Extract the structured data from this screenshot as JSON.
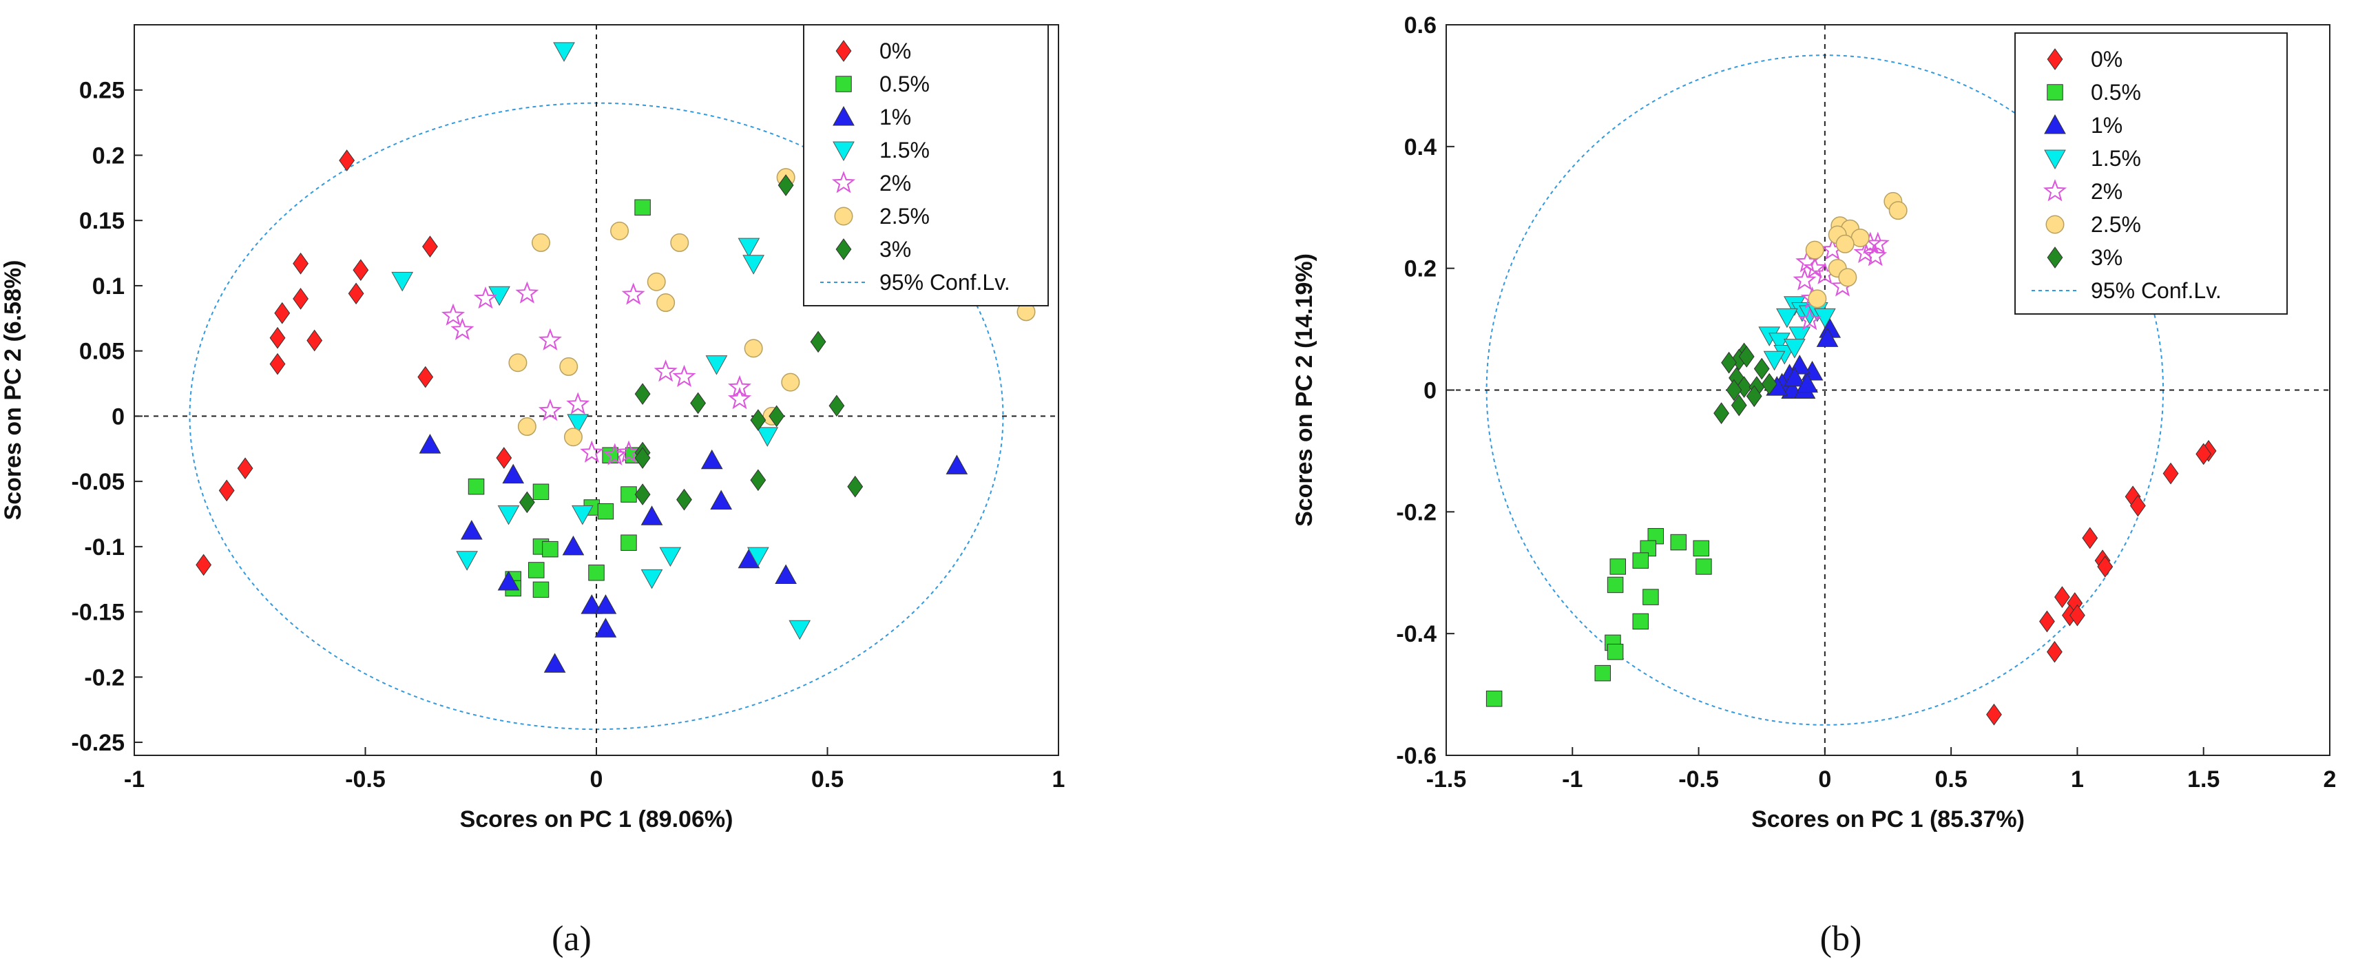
{
  "chart_data": [
    {
      "type": "scatter",
      "panel_label": "(a)",
      "xlabel": "Scores on PC 1 (89.06%)",
      "ylabel": "Scores on PC 2 (6.58%)",
      "xlim": [
        -1,
        1
      ],
      "ylim": [
        -0.26,
        0.3
      ],
      "xticks": [
        -1,
        -0.5,
        0,
        0.5,
        1
      ],
      "xtick_labels": [
        "-1",
        "-0.5",
        "0",
        "0.5",
        "1"
      ],
      "yticks": [
        -0.25,
        -0.2,
        -0.15,
        -0.1,
        -0.05,
        0,
        0.05,
        0.1,
        0.15,
        0.2,
        0.25
      ],
      "ytick_labels": [
        "-0.25",
        "-0.2",
        "-0.15",
        "-0.1",
        "-0.05",
        "0",
        "0.05",
        "0.1",
        "0.15",
        "0.2",
        "0.25"
      ],
      "legend_position": "top-right",
      "confidence_ellipse": {
        "label": "95% Conf.Lv.",
        "center": [
          0,
          0.0
        ],
        "rx": 0.88,
        "ry": 0.24
      },
      "series": [
        {
          "name": "0%",
          "marker": "diamond",
          "color": "#ff2020",
          "points": [
            [
              -0.54,
              0.196
            ],
            [
              -0.64,
              0.117
            ],
            [
              -0.51,
              0.112
            ],
            [
              -0.36,
              0.13
            ],
            [
              -0.68,
              0.079
            ],
            [
              -0.64,
              0.09
            ],
            [
              -0.52,
              0.094
            ],
            [
              -0.69,
              0.06
            ],
            [
              -0.61,
              0.058
            ],
            [
              -0.69,
              0.04
            ],
            [
              -0.37,
              0.03
            ],
            [
              -0.2,
              -0.032
            ],
            [
              -0.76,
              -0.04
            ],
            [
              -0.8,
              -0.057
            ],
            [
              -0.85,
              -0.114
            ]
          ]
        },
        {
          "name": "0.5%",
          "marker": "square",
          "color": "#33dd33",
          "points": [
            [
              0.1,
              0.16
            ],
            [
              0.03,
              -0.03
            ],
            [
              0.08,
              -0.03
            ],
            [
              -0.26,
              -0.054
            ],
            [
              -0.12,
              -0.058
            ],
            [
              0.07,
              -0.06
            ],
            [
              -0.01,
              -0.07
            ],
            [
              0.02,
              -0.073
            ],
            [
              0.07,
              -0.097
            ],
            [
              -0.12,
              -0.1
            ],
            [
              -0.1,
              -0.102
            ],
            [
              0.0,
              -0.12
            ],
            [
              -0.13,
              -0.118
            ],
            [
              -0.18,
              -0.125
            ],
            [
              -0.12,
              -0.133
            ],
            [
              -0.18,
              -0.132
            ]
          ]
        },
        {
          "name": "1%",
          "marker": "triangle-up",
          "color": "#2222ee",
          "points": [
            [
              -0.36,
              -0.022
            ],
            [
              -0.27,
              -0.088
            ],
            [
              -0.18,
              -0.045
            ],
            [
              -0.05,
              -0.1
            ],
            [
              -0.19,
              -0.127
            ],
            [
              0.12,
              -0.077
            ],
            [
              0.25,
              -0.034
            ],
            [
              0.27,
              -0.065
            ],
            [
              0.33,
              -0.11
            ],
            [
              0.41,
              -0.122
            ],
            [
              0.78,
              -0.038
            ],
            [
              -0.01,
              -0.145
            ],
            [
              0.02,
              -0.145
            ],
            [
              0.02,
              -0.163
            ],
            [
              -0.09,
              -0.19
            ]
          ]
        },
        {
          "name": "1.5%",
          "marker": "triangle-down",
          "color": "#00eeee",
          "points": [
            [
              -0.07,
              0.28
            ],
            [
              -0.42,
              0.104
            ],
            [
              -0.21,
              0.093
            ],
            [
              0.33,
              0.13
            ],
            [
              0.34,
              0.117
            ],
            [
              0.26,
              0.04
            ],
            [
              0.37,
              -0.015
            ],
            [
              -0.04,
              -0.005
            ],
            [
              -0.19,
              -0.075
            ],
            [
              -0.03,
              -0.075
            ],
            [
              -0.28,
              -0.11
            ],
            [
              0.16,
              -0.107
            ],
            [
              0.35,
              -0.107
            ],
            [
              0.12,
              -0.124
            ],
            [
              0.44,
              -0.163
            ]
          ]
        },
        {
          "name": "2%",
          "marker": "star",
          "color": "#dd55dd",
          "points": [
            [
              -0.31,
              0.077
            ],
            [
              -0.29,
              0.066
            ],
            [
              -0.24,
              0.09
            ],
            [
              -0.15,
              0.094
            ],
            [
              -0.1,
              0.058
            ],
            [
              0.08,
              0.093
            ],
            [
              -0.1,
              0.004
            ],
            [
              -0.04,
              0.009
            ],
            [
              0.15,
              0.034
            ],
            [
              0.19,
              0.03
            ],
            [
              0.31,
              0.022
            ],
            [
              0.31,
              0.013
            ],
            [
              -0.01,
              -0.028
            ],
            [
              0.04,
              -0.03
            ],
            [
              0.07,
              -0.028
            ]
          ]
        },
        {
          "name": "2.5%",
          "marker": "circle",
          "color": "#ffdd88",
          "points": [
            [
              -0.12,
              0.133
            ],
            [
              0.05,
              0.142
            ],
            [
              0.18,
              0.133
            ],
            [
              0.41,
              0.183
            ],
            [
              0.13,
              0.103
            ],
            [
              0.15,
              0.087
            ],
            [
              0.93,
              0.08
            ],
            [
              0.34,
              0.052
            ],
            [
              -0.17,
              0.041
            ],
            [
              -0.06,
              0.038
            ],
            [
              0.42,
              0.026
            ],
            [
              0.38,
              0.0
            ],
            [
              -0.15,
              -0.008
            ],
            [
              -0.05,
              -0.016
            ]
          ]
        },
        {
          "name": "3%",
          "marker": "diamond",
          "color": "#228822",
          "points": [
            [
              0.41,
              0.177
            ],
            [
              0.48,
              0.057
            ],
            [
              0.1,
              0.017
            ],
            [
              0.22,
              0.01
            ],
            [
              0.52,
              0.008
            ],
            [
              0.39,
              0.0
            ],
            [
              0.35,
              -0.003
            ],
            [
              0.1,
              -0.028
            ],
            [
              0.1,
              -0.032
            ],
            [
              0.35,
              -0.049
            ],
            [
              0.56,
              -0.054
            ],
            [
              -0.15,
              -0.066
            ],
            [
              0.1,
              -0.06
            ],
            [
              0.19,
              -0.064
            ]
          ]
        }
      ]
    },
    {
      "type": "scatter",
      "panel_label": "(b)",
      "xlabel": "Scores on PC 1 (85.37%)",
      "ylabel": "Scores on PC 2 (14.19%)",
      "xlim": [
        -1.5,
        2
      ],
      "ylim": [
        -0.6,
        0.6
      ],
      "xticks": [
        -1.5,
        -1,
        -0.5,
        0,
        0.5,
        1,
        1.5,
        2
      ],
      "xtick_labels": [
        "-1.5",
        "-1",
        "-0.5",
        "0",
        "0.5",
        "1",
        "1.5",
        "2"
      ],
      "yticks": [
        -0.6,
        -0.4,
        -0.2,
        0,
        0.2,
        0.4,
        0.6
      ],
      "ytick_labels": [
        "-0.6",
        "-0.4",
        "-0.2",
        "0",
        "0.2",
        "0.4",
        "0.6"
      ],
      "legend_position": "top-right",
      "confidence_ellipse": {
        "label": "95% Conf.Lv.",
        "center": [
          0,
          0.0
        ],
        "rx": 1.34,
        "ry": 0.55
      },
      "series": [
        {
          "name": "0%",
          "marker": "diamond",
          "color": "#ff2020",
          "points": [
            [
              1.52,
              -0.1
            ],
            [
              1.5,
              -0.105
            ],
            [
              1.37,
              -0.137
            ],
            [
              1.22,
              -0.175
            ],
            [
              1.24,
              -0.19
            ],
            [
              1.05,
              -0.243
            ],
            [
              1.1,
              -0.28
            ],
            [
              1.11,
              -0.29
            ],
            [
              0.94,
              -0.34
            ],
            [
              0.99,
              -0.35
            ],
            [
              0.97,
              -0.37
            ],
            [
              1.0,
              -0.37
            ],
            [
              0.88,
              -0.38
            ],
            [
              0.91,
              -0.43
            ],
            [
              0.67,
              -0.533
            ]
          ]
        },
        {
          "name": "0.5%",
          "marker": "square",
          "color": "#33dd33",
          "points": [
            [
              -0.67,
              -0.24
            ],
            [
              -0.58,
              -0.25
            ],
            [
              -0.7,
              -0.26
            ],
            [
              -0.49,
              -0.26
            ],
            [
              -0.73,
              -0.28
            ],
            [
              -0.48,
              -0.29
            ],
            [
              -0.82,
              -0.29
            ],
            [
              -0.83,
              -0.32
            ],
            [
              -0.69,
              -0.34
            ],
            [
              -0.73,
              -0.38
            ],
            [
              -0.84,
              -0.415
            ],
            [
              -0.83,
              -0.43
            ],
            [
              -0.88,
              -0.465
            ],
            [
              -1.31,
              -0.507
            ]
          ]
        },
        {
          "name": "1%",
          "marker": "triangle-up",
          "color": "#2222ee",
          "points": [
            [
              0.02,
              0.1
            ],
            [
              0.01,
              0.085
            ],
            [
              -0.05,
              0.03
            ],
            [
              -0.1,
              0.04
            ],
            [
              -0.14,
              0.025
            ],
            [
              -0.17,
              0.01
            ],
            [
              -0.13,
              0.0
            ],
            [
              -0.08,
              0.0
            ],
            [
              -0.19,
              0.005
            ],
            [
              -0.12,
              0.02
            ],
            [
              -0.07,
              0.01
            ]
          ]
        },
        {
          "name": "1.5%",
          "marker": "triangle-down",
          "color": "#00eeee",
          "points": [
            [
              -0.12,
              0.14
            ],
            [
              -0.09,
              0.13
            ],
            [
              -0.06,
              0.125
            ],
            [
              -0.15,
              0.12
            ],
            [
              -0.03,
              0.13
            ],
            [
              -0.22,
              0.09
            ],
            [
              -0.18,
              0.08
            ],
            [
              -0.1,
              0.09
            ],
            [
              -0.16,
              0.06
            ],
            [
              -0.2,
              0.05
            ],
            [
              -0.12,
              0.07
            ],
            [
              0.0,
              0.12
            ]
          ]
        },
        {
          "name": "2%",
          "marker": "star",
          "color": "#dd55dd",
          "points": [
            [
              -0.07,
              0.21
            ],
            [
              -0.04,
              0.2
            ],
            [
              0.0,
              0.19
            ],
            [
              0.21,
              0.24
            ],
            [
              0.2,
              0.22
            ],
            [
              0.16,
              0.225
            ],
            [
              0.18,
              0.24
            ],
            [
              0.03,
              0.23
            ],
            [
              -0.08,
              0.18
            ],
            [
              -0.05,
              0.15
            ],
            [
              0.07,
              0.17
            ],
            [
              -0.06,
              0.115
            ]
          ]
        },
        {
          "name": "2.5%",
          "marker": "circle",
          "color": "#ffdd88",
          "points": [
            [
              0.27,
              0.31
            ],
            [
              0.29,
              0.295
            ],
            [
              0.06,
              0.27
            ],
            [
              0.1,
              0.265
            ],
            [
              0.05,
              0.255
            ],
            [
              0.14,
              0.25
            ],
            [
              0.08,
              0.24
            ],
            [
              -0.04,
              0.23
            ],
            [
              0.05,
              0.2
            ],
            [
              0.09,
              0.185
            ],
            [
              -0.03,
              0.15
            ]
          ]
        },
        {
          "name": "3%",
          "marker": "diamond",
          "color": "#228822",
          "points": [
            [
              -0.32,
              0.06
            ],
            [
              -0.34,
              0.05
            ],
            [
              -0.38,
              0.045
            ],
            [
              -0.31,
              0.055
            ],
            [
              -0.25,
              0.035
            ],
            [
              -0.35,
              0.02
            ],
            [
              -0.22,
              0.01
            ],
            [
              -0.32,
              0.005
            ],
            [
              -0.27,
              0.005
            ],
            [
              -0.36,
              0.0
            ],
            [
              -0.28,
              -0.01
            ],
            [
              -0.34,
              -0.025
            ],
            [
              -0.41,
              -0.038
            ]
          ]
        }
      ]
    }
  ]
}
